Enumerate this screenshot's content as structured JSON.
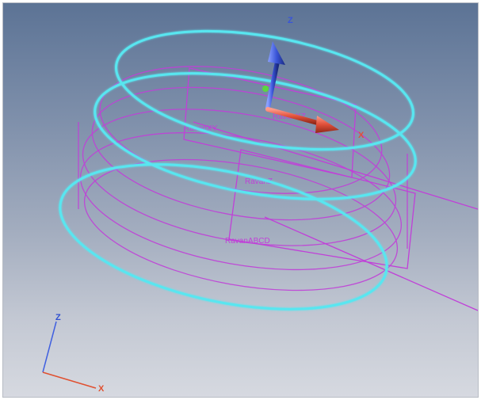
{
  "scene": {
    "labels": {
      "plane_xy": "RavanXY",
      "plane_abcd": "RavanABCD",
      "plane_z": "RavanZ",
      "plane_top": "RavanXZ"
    },
    "manipulator_axes": {
      "z": "Z",
      "x": "X"
    },
    "triad_axes": {
      "z": "Z",
      "x": "X"
    }
  },
  "colors": {
    "cyan_curve": "#59e6f0",
    "magenta_wire": "#c040d8",
    "z_arrow": "#3a55d8",
    "x_arrow": "#e0503a",
    "origin_dot": "#5cd640"
  }
}
